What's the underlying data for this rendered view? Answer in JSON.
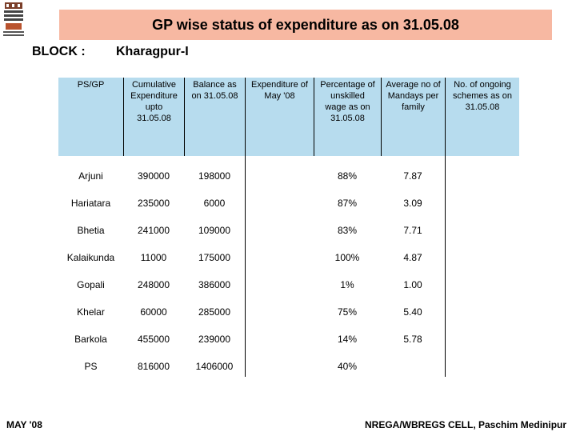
{
  "title": "GP wise status of expenditure as on 31.05.08",
  "block": {
    "label": "BLOCK :",
    "value": "Kharagpur-I"
  },
  "columns": [
    "PS/GP",
    "Cumulative Expenditure upto 31.05.08",
    "Balance as on 31.05.08",
    "Expenditure of May '08",
    "Percentage of unskilled wage as on 31.05.08",
    "Average no of Mandays per family",
    "No. of ongoing schemes as on 31.05.08"
  ],
  "rows": [
    {
      "name": "Arjuni",
      "cumulative": "390000",
      "balance": "198000",
      "expenditure_may": "",
      "percentage": "88%",
      "avg_mandays": "7.87",
      "ongoing": ""
    },
    {
      "name": "Hariatara",
      "cumulative": "235000",
      "balance": "6000",
      "expenditure_may": "",
      "percentage": "87%",
      "avg_mandays": "3.09",
      "ongoing": ""
    },
    {
      "name": "Bhetia",
      "cumulative": "241000",
      "balance": "109000",
      "expenditure_may": "",
      "percentage": "83%",
      "avg_mandays": "7.71",
      "ongoing": ""
    },
    {
      "name": "Kalaikunda",
      "cumulative": "11000",
      "balance": "175000",
      "expenditure_may": "",
      "percentage": "100%",
      "avg_mandays": "4.87",
      "ongoing": ""
    },
    {
      "name": "Gopali",
      "cumulative": "248000",
      "balance": "386000",
      "expenditure_may": "",
      "percentage": "1%",
      "avg_mandays": "1.00",
      "ongoing": ""
    },
    {
      "name": "Khelar",
      "cumulative": "60000",
      "balance": "285000",
      "expenditure_may": "",
      "percentage": "75%",
      "avg_mandays": "5.40",
      "ongoing": ""
    },
    {
      "name": "Barkola",
      "cumulative": "455000",
      "balance": "239000",
      "expenditure_may": "",
      "percentage": "14%",
      "avg_mandays": "5.78",
      "ongoing": ""
    },
    {
      "name": "PS",
      "cumulative": "816000",
      "balance": "1406000",
      "expenditure_may": "",
      "percentage": "40%",
      "avg_mandays": "",
      "ongoing": ""
    }
  ],
  "footer": {
    "left": "MAY '08",
    "right": "NREGA/WBREGS CELL, Paschim Medinipur"
  },
  "colors": {
    "title_bg": "#f7b8a2",
    "header_bg": "#b7dcee"
  }
}
